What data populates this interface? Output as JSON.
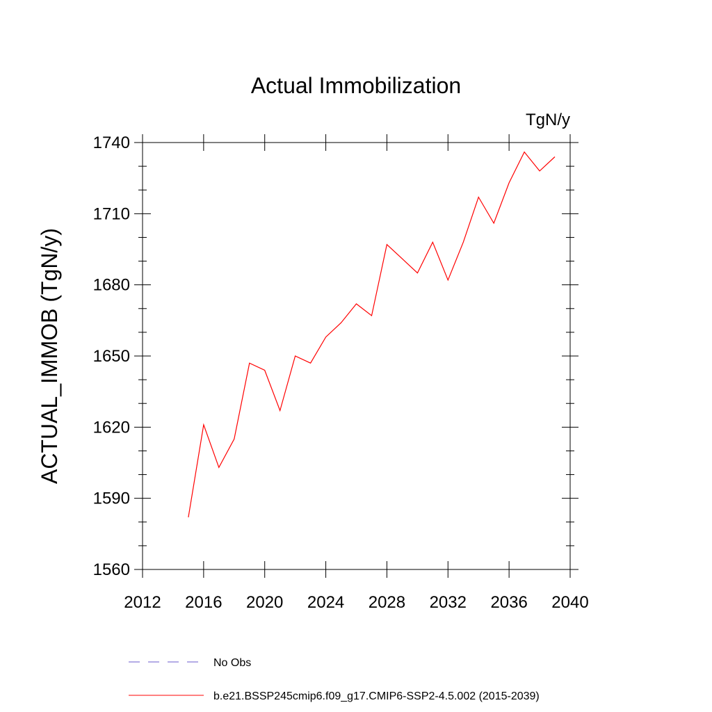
{
  "chart_data": {
    "type": "line",
    "title": "Actual Immobilization",
    "units": "TgN/y",
    "xlabel": "",
    "ylabel": "ACTUAL_IMMOB  (TgN/y)",
    "xlim": [
      2012,
      2040
    ],
    "ylim": [
      1560,
      1740
    ],
    "xticks": [
      2012,
      2016,
      2020,
      2024,
      2028,
      2032,
      2036,
      2040
    ],
    "yticks": [
      1560,
      1590,
      1620,
      1650,
      1680,
      1710,
      1740
    ],
    "grid": false,
    "legend_position": "bottom",
    "series": [
      {
        "name": "No Obs",
        "color": "#6a5acd",
        "style": "dashed",
        "x": [],
        "y": []
      },
      {
        "name": "b.e21.BSSP245cmip6.f09_g17.CMIP6-SSP2-4.5.002 (2015-2039)",
        "color": "#ff0000",
        "style": "solid",
        "x": [
          2015,
          2016,
          2017,
          2018,
          2019,
          2020,
          2021,
          2022,
          2023,
          2024,
          2025,
          2026,
          2027,
          2028,
          2029,
          2030,
          2031,
          2032,
          2033,
          2034,
          2035,
          2036,
          2037,
          2038,
          2039
        ],
        "y": [
          1582,
          1621,
          1603,
          1615,
          1647,
          1644,
          1627,
          1650,
          1647,
          1658,
          1664,
          1672,
          1667,
          1697,
          1691,
          1685,
          1698,
          1682,
          1698,
          1717,
          1706,
          1723,
          1736,
          1728,
          1734
        ]
      }
    ]
  }
}
